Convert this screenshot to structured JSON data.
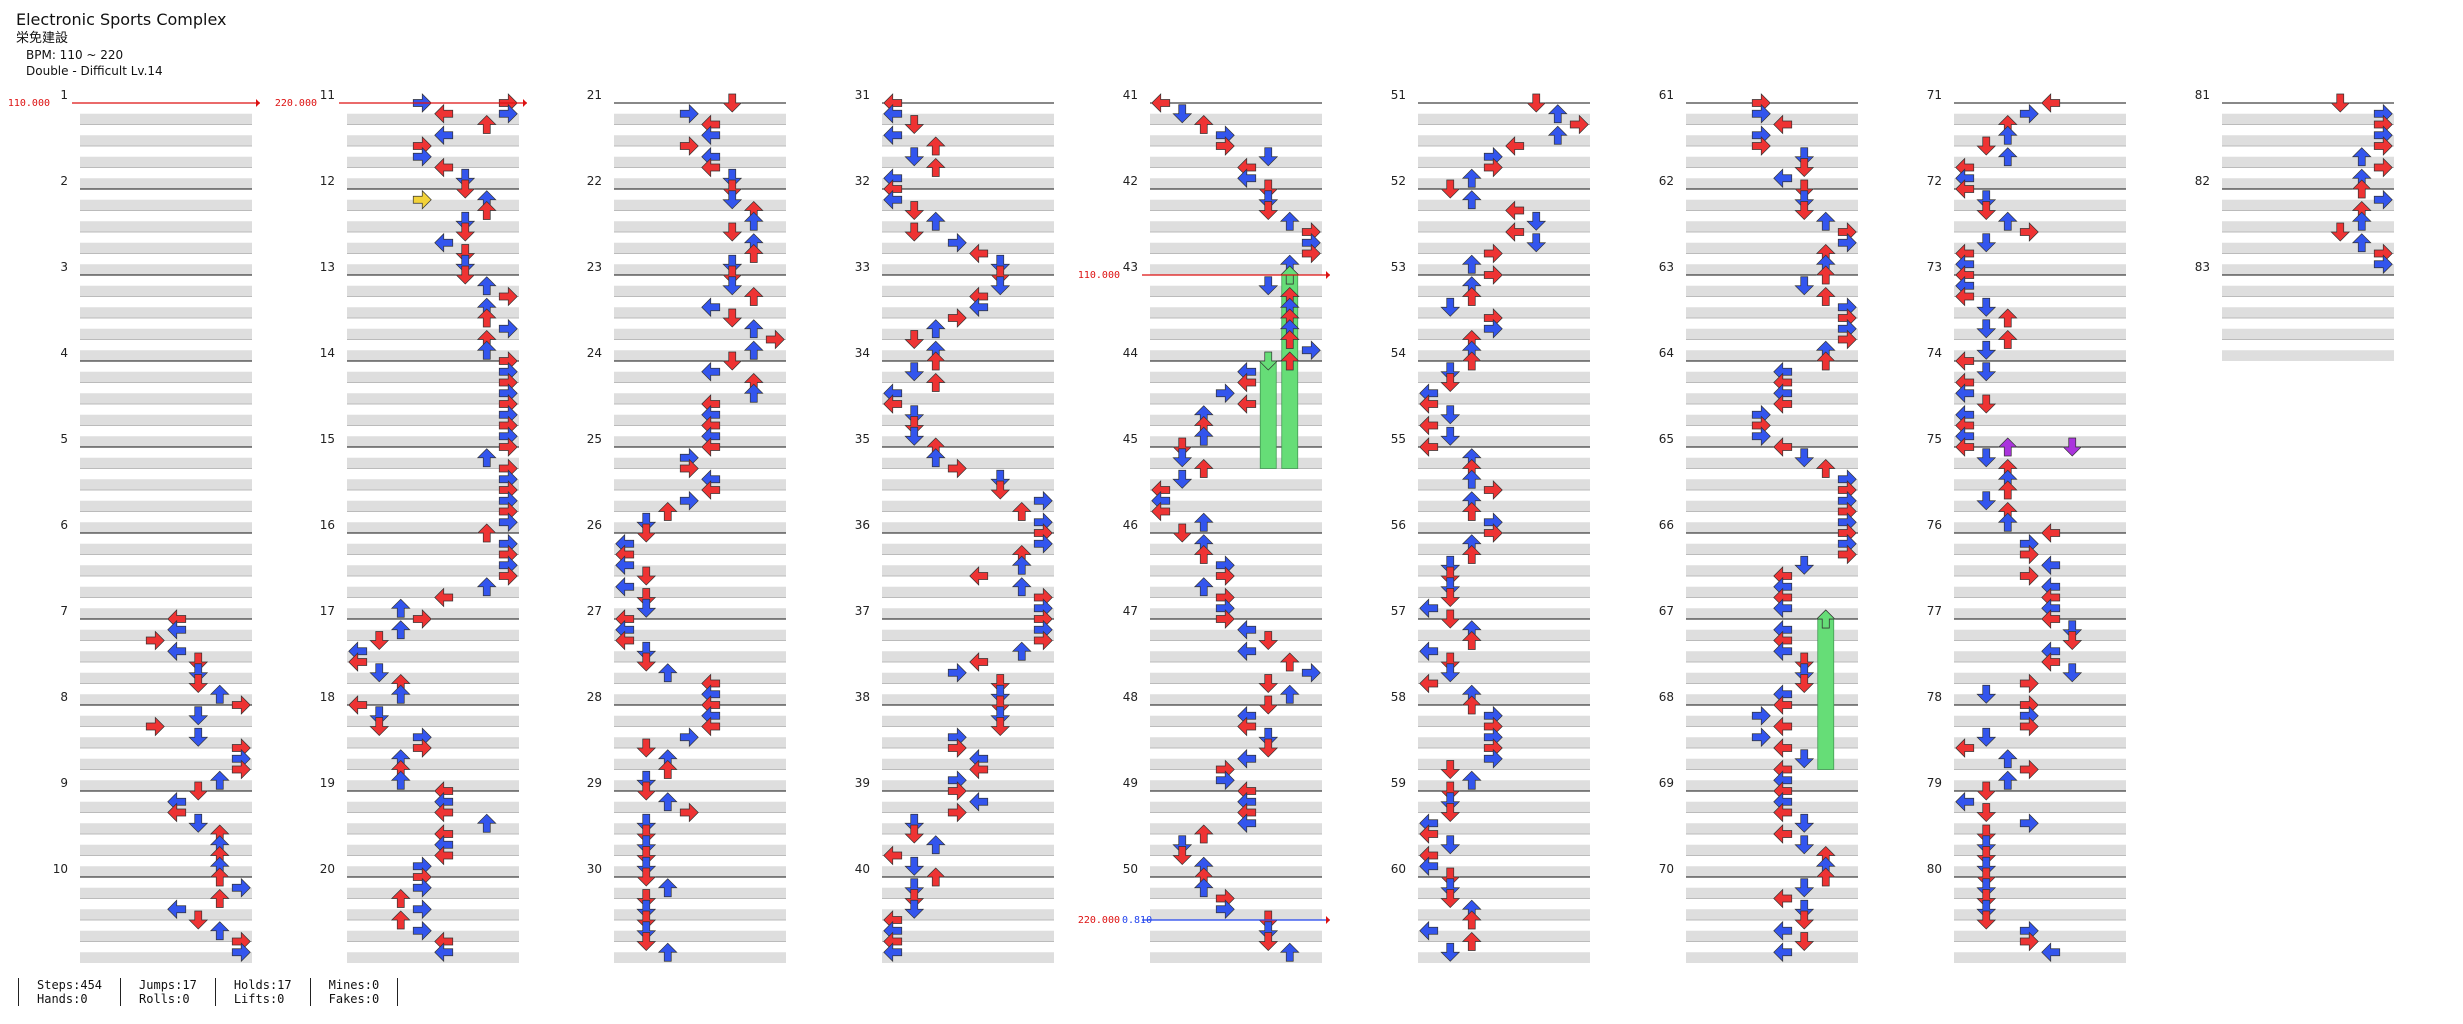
{
  "header": {
    "title": "Electronic Sports Complex",
    "artist": "栄免建設",
    "bpm_line": "BPM: 110 ~ 220",
    "chart_line": "Double - Difficult  Lv.14"
  },
  "colors": {
    "red_arrow": "#ee3333",
    "blue_arrow": "#3355ee",
    "yellow_arrow": "#f2d23a",
    "purple_arrow": "#aa33dd",
    "hold_body": "#66dd77",
    "row_shade": "#dedede",
    "bpm_marker": "#dd1111",
    "stop_marker": "#2244ee"
  },
  "measures": {
    "first": 1,
    "last": 83,
    "per_column": 10,
    "beats_per_measure": 4
  },
  "bpm_changes": [
    {
      "measure": 1,
      "label": "110.000",
      "color": "red"
    },
    {
      "measure": 11,
      "label": "220.000",
      "color": "red"
    },
    {
      "measure": 43,
      "label": "110.000",
      "color": "red"
    },
    {
      "measure": 50.5,
      "label": "220.000",
      "color": "red",
      "extra": "0.810",
      "extra_color": "blue"
    }
  ],
  "notes_sample": [
    {
      "measure": 11,
      "beat": 0,
      "panel": 3,
      "color": "blue"
    },
    {
      "measure": 11,
      "beat": 0.5,
      "panel": 4,
      "color": "red"
    },
    {
      "measure": 12,
      "beat": 0.5,
      "panel": 3,
      "color": "yellow"
    },
    {
      "measure": 43,
      "beat": 0,
      "panel": 6,
      "color": "green",
      "hold_measures": 2.25
    },
    {
      "measure": 44,
      "beat": 0,
      "panel": 5,
      "color": "green",
      "hold_measures": 1.25
    },
    {
      "measure": 67,
      "beat": 0,
      "panel": 6,
      "color": "green",
      "hold_measures": 1.75
    },
    {
      "measure": 75,
      "beat": 0,
      "panel": 2,
      "color": "purple"
    },
    {
      "measure": 75,
      "beat": 0,
      "panel": 5,
      "color": "purple"
    }
  ],
  "stats": {
    "steps": "Steps:454",
    "hands": "Hands:0",
    "jumps": "Jumps:17",
    "rolls": "Rolls:0",
    "holds": "Holds:17",
    "lifts": "Lifts:0",
    "mines": "Mines:0",
    "fakes": "Fakes:0"
  }
}
